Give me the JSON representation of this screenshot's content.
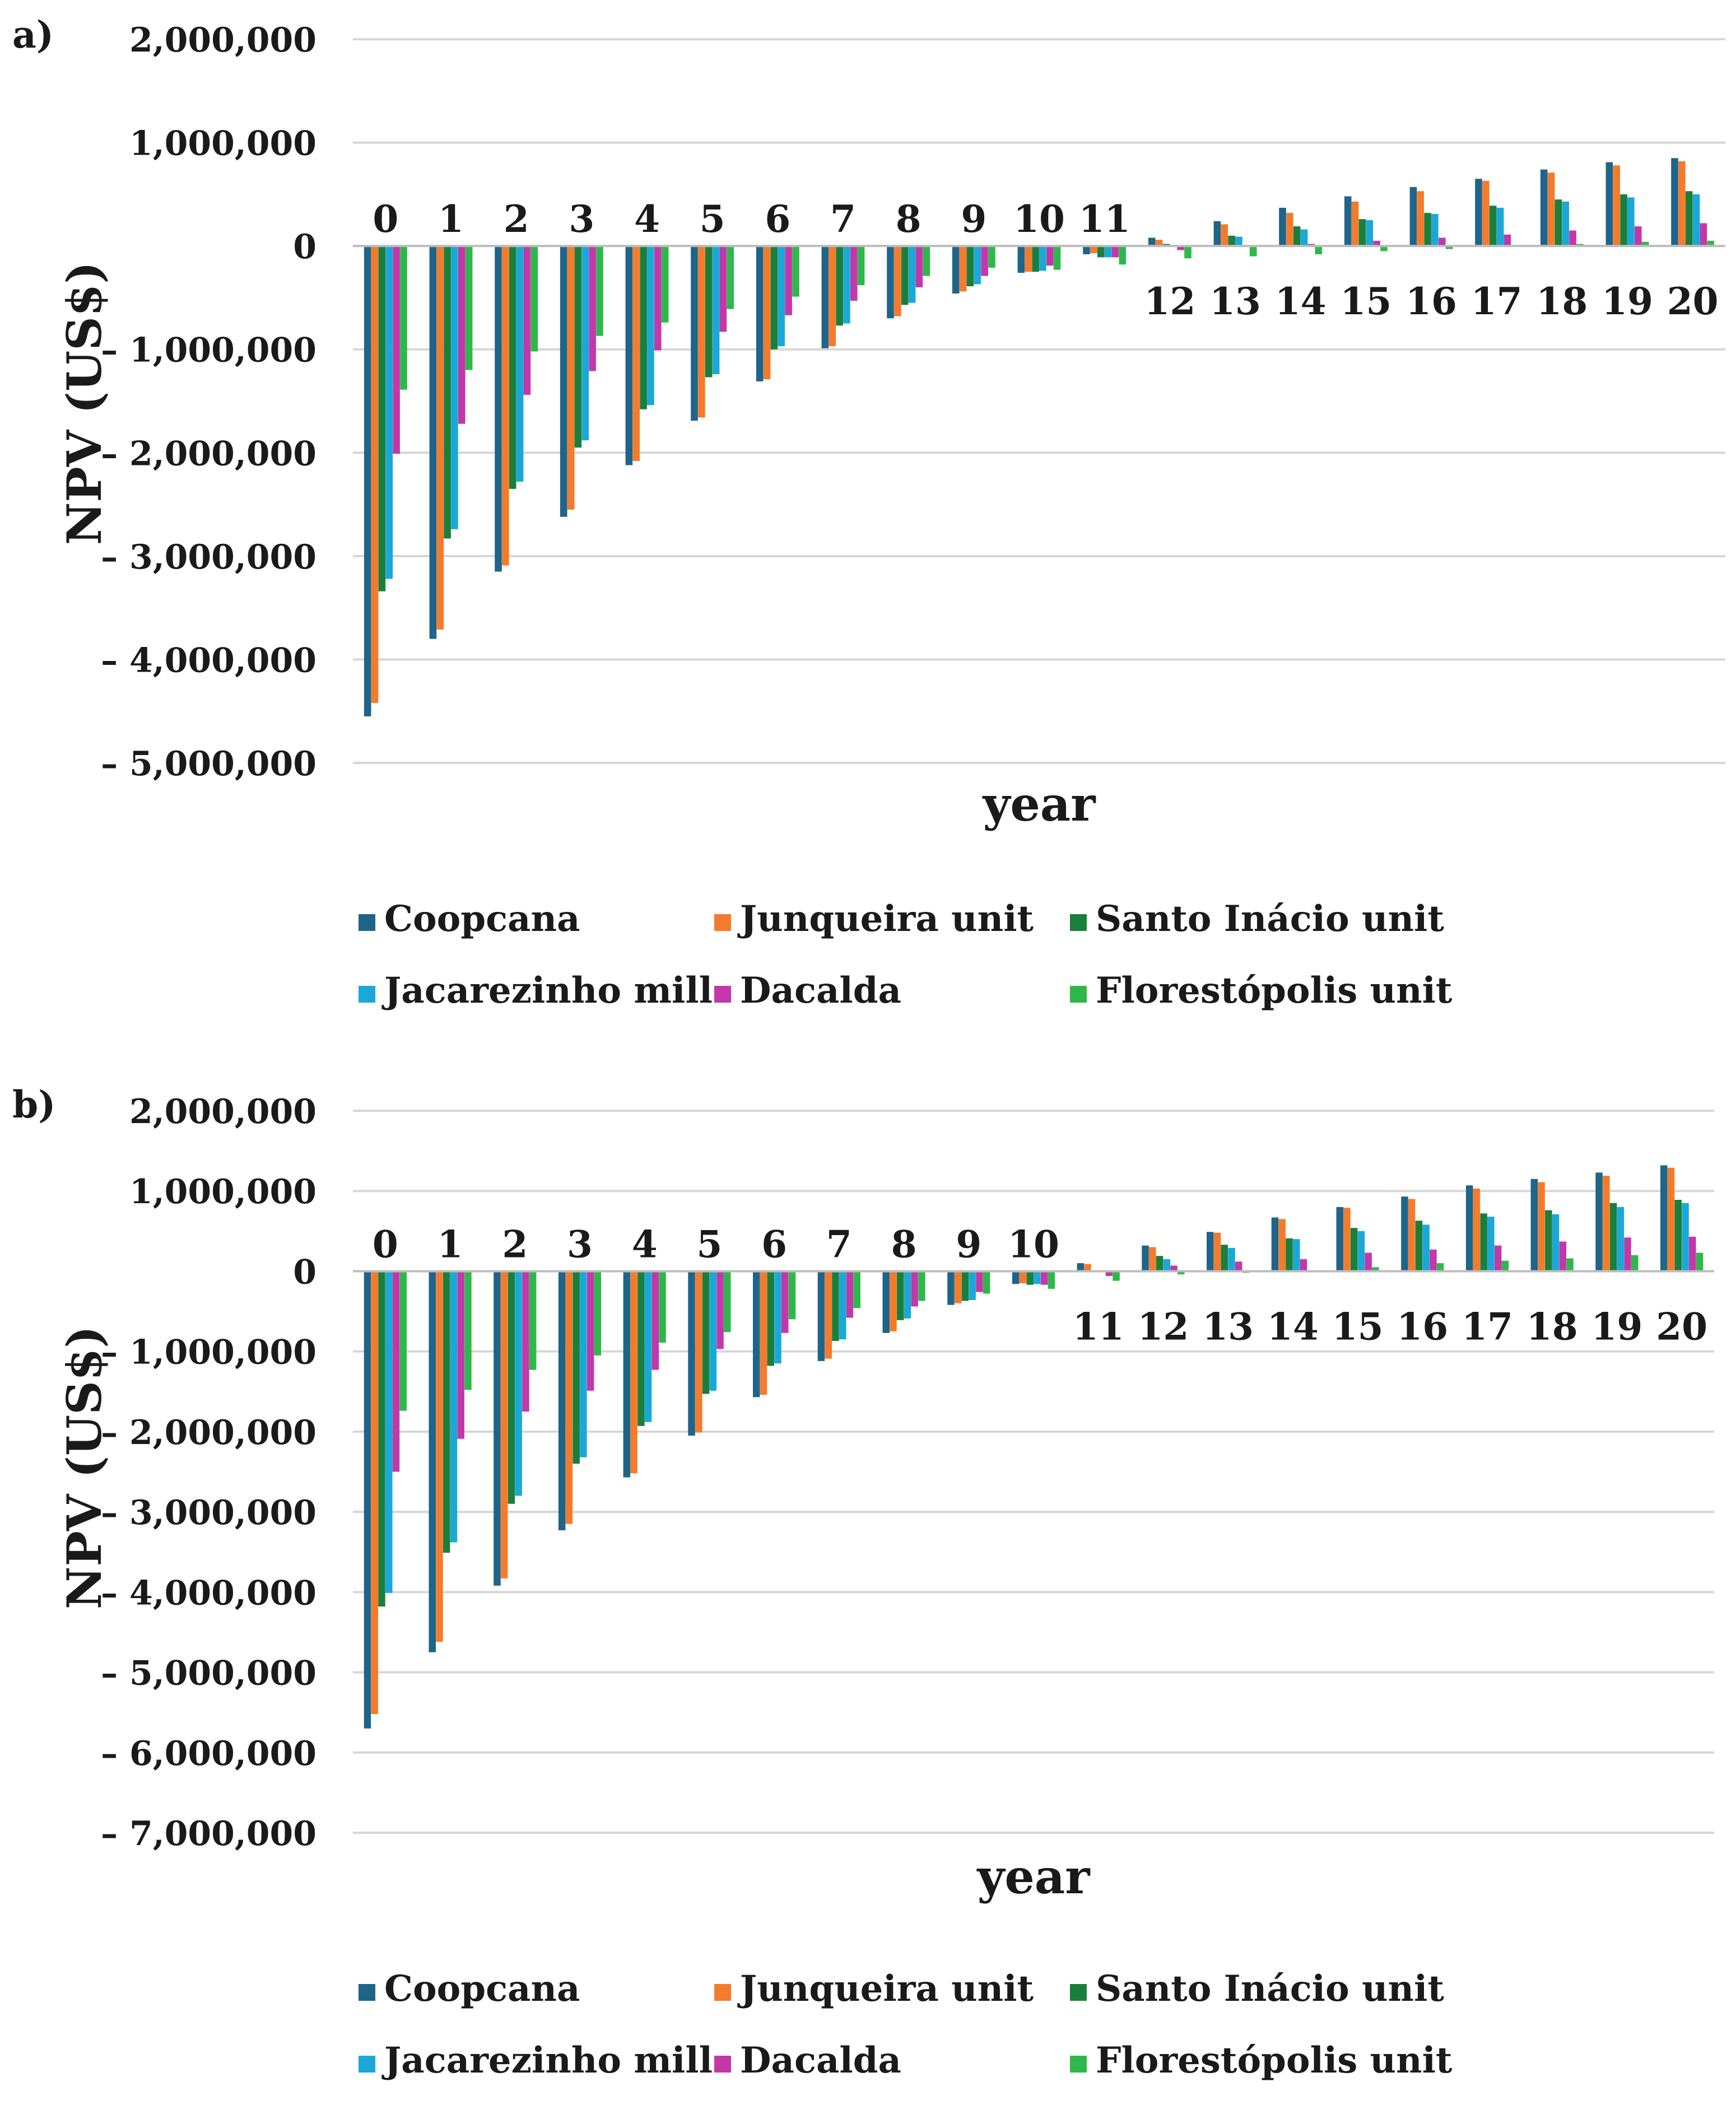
{
  "chart_data": [
    {
      "type": "bar",
      "panel_label": "a)",
      "xlabel": "year",
      "ylabel": "NPV (US$)",
      "ylim": [
        -5000000,
        2000000
      ],
      "yticks": [
        2000000,
        1000000,
        0,
        -1000000,
        -2000000,
        -3000000,
        -4000000,
        -5000000
      ],
      "ytick_labels": [
        "2,000,000",
        "1,000,000",
        "0",
        "– 1,000,000",
        "– 2,000,000",
        "– 3,000,000",
        "– 4,000,000",
        "– 5,000,000"
      ],
      "grid": true,
      "legend_position": "bottom",
      "categories": [
        "0",
        "1",
        "2",
        "3",
        "4",
        "5",
        "6",
        "7",
        "8",
        "9",
        "10",
        "11",
        "12",
        "13",
        "14",
        "15",
        "16",
        "17",
        "18",
        "19",
        "20"
      ],
      "series": [
        {
          "name": "Coopcana",
          "color": "#1f6489",
          "values": [
            -4550000,
            -3800000,
            -3150000,
            -2620000,
            -2120000,
            -1690000,
            -1310000,
            -990000,
            -700000,
            -460000,
            -260000,
            -80000,
            80000,
            240000,
            370000,
            480000,
            570000,
            650000,
            740000,
            810000,
            850000
          ]
        },
        {
          "name": "Junqueira unit",
          "color": "#f47b2b",
          "values": [
            -4420000,
            -3710000,
            -3090000,
            -2550000,
            -2080000,
            -1660000,
            -1290000,
            -970000,
            -680000,
            -440000,
            -250000,
            -70000,
            60000,
            210000,
            320000,
            430000,
            530000,
            630000,
            710000,
            780000,
            820000
          ]
        },
        {
          "name": "Santo Inácio unit",
          "color": "#1a7f3c",
          "values": [
            -3340000,
            -2830000,
            -2350000,
            -1950000,
            -1580000,
            -1270000,
            -1000000,
            -770000,
            -570000,
            -390000,
            -250000,
            -110000,
            20000,
            100000,
            190000,
            260000,
            320000,
            390000,
            450000,
            500000,
            530000
          ]
        },
        {
          "name": "Jacarezinho mill",
          "color": "#1ba8d8",
          "values": [
            -3220000,
            -2740000,
            -2280000,
            -1880000,
            -1540000,
            -1240000,
            -970000,
            -750000,
            -550000,
            -370000,
            -240000,
            -110000,
            10000,
            90000,
            160000,
            250000,
            310000,
            370000,
            430000,
            470000,
            500000
          ]
        },
        {
          "name": "Dacalda",
          "color": "#c238a9",
          "values": [
            -2010000,
            -1720000,
            -1440000,
            -1210000,
            -1010000,
            -830000,
            -670000,
            -530000,
            -400000,
            -290000,
            -190000,
            -110000,
            -40000,
            0,
            20000,
            50000,
            80000,
            110000,
            150000,
            190000,
            220000
          ]
        },
        {
          "name": "Florestópolis unit",
          "color": "#2eb84a",
          "values": [
            -1390000,
            -1200000,
            -1020000,
            -870000,
            -740000,
            -610000,
            -490000,
            -380000,
            -290000,
            -210000,
            -230000,
            -180000,
            -120000,
            -100000,
            -80000,
            -50000,
            -30000,
            10000,
            20000,
            40000,
            50000
          ]
        }
      ]
    },
    {
      "type": "bar",
      "panel_label": "b)",
      "xlabel": "year",
      "ylabel": "NPV (US$)",
      "ylim": [
        -7000000,
        2000000
      ],
      "yticks": [
        2000000,
        1000000,
        0,
        -1000000,
        -2000000,
        -3000000,
        -4000000,
        -5000000,
        -6000000,
        -7000000
      ],
      "ytick_labels": [
        "2,000,000",
        "1,000,000",
        "0",
        "– 1,000,000",
        "– 2,000,000",
        "– 3,000,000",
        "– 4,000,000",
        "– 5,000,000",
        "– 6,000,000",
        "– 7,000,000"
      ],
      "grid": true,
      "legend_position": "bottom",
      "categories": [
        "0",
        "1",
        "2",
        "3",
        "4",
        "5",
        "6",
        "7",
        "8",
        "9",
        "10",
        "11",
        "12",
        "13",
        "14",
        "15",
        "16",
        "17",
        "18",
        "19",
        "20"
      ],
      "series": [
        {
          "name": "Coopcana",
          "color": "#1f6489",
          "values": [
            -5700000,
            -4750000,
            -3920000,
            -3230000,
            -2570000,
            -2050000,
            -1570000,
            -1120000,
            -770000,
            -420000,
            -160000,
            100000,
            320000,
            490000,
            670000,
            800000,
            930000,
            1070000,
            1150000,
            1230000,
            1320000
          ]
        },
        {
          "name": "Junqueira unit",
          "color": "#f47b2b",
          "values": [
            -5520000,
            -4620000,
            -3830000,
            -3150000,
            -2520000,
            -2010000,
            -1540000,
            -1090000,
            -750000,
            -400000,
            -150000,
            90000,
            300000,
            480000,
            650000,
            790000,
            900000,
            1030000,
            1110000,
            1190000,
            1290000
          ]
        },
        {
          "name": "Santo Inácio unit",
          "color": "#1a7f3c",
          "values": [
            -4180000,
            -3510000,
            -2900000,
            -2400000,
            -1930000,
            -1530000,
            -1180000,
            -870000,
            -610000,
            -370000,
            -170000,
            10000,
            190000,
            330000,
            410000,
            540000,
            630000,
            720000,
            760000,
            850000,
            890000
          ]
        },
        {
          "name": "Jacarezinho mill",
          "color": "#1ba8d8",
          "values": [
            -4010000,
            -3380000,
            -2800000,
            -2320000,
            -1880000,
            -1490000,
            -1150000,
            -850000,
            -590000,
            -360000,
            -160000,
            -10000,
            150000,
            290000,
            400000,
            500000,
            580000,
            680000,
            710000,
            800000,
            850000
          ]
        },
        {
          "name": "Dacalda",
          "color": "#c238a9",
          "values": [
            -2500000,
            -2090000,
            -1750000,
            -1490000,
            -1230000,
            -970000,
            -770000,
            -580000,
            -440000,
            -260000,
            -170000,
            -60000,
            70000,
            120000,
            150000,
            230000,
            270000,
            320000,
            370000,
            420000,
            430000
          ]
        },
        {
          "name": "Florestópolis unit",
          "color": "#2eb84a",
          "values": [
            -1740000,
            -1480000,
            -1230000,
            -1050000,
            -890000,
            -760000,
            -600000,
            -460000,
            -370000,
            -280000,
            -220000,
            -120000,
            -40000,
            -20000,
            10000,
            50000,
            100000,
            130000,
            160000,
            200000,
            230000
          ]
        }
      ]
    }
  ]
}
